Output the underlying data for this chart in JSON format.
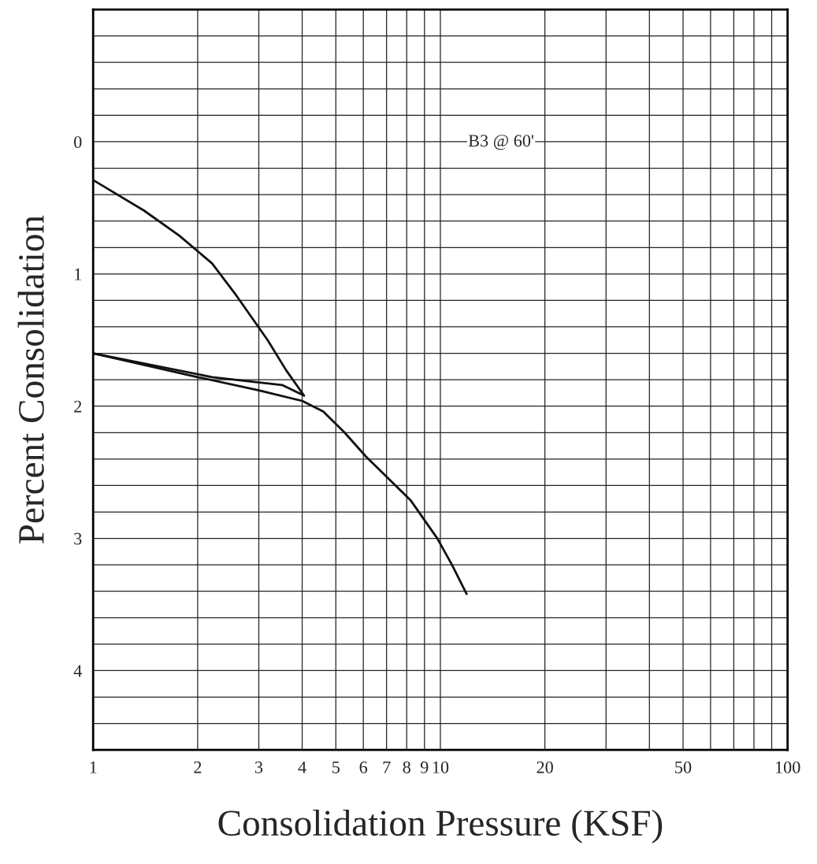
{
  "chart_data": {
    "type": "line",
    "xlabel": "Consolidation Pressure (KSF)",
    "ylabel": "Percent Consolidation",
    "annotations": [
      "B3 @ 60'"
    ],
    "log": "x",
    "grid": true,
    "marker": "none",
    "line_style": "solid",
    "xlim": [
      1,
      100
    ],
    "ylim": [
      4.6,
      -1
    ],
    "xticks": [
      1,
      2,
      3,
      4,
      5,
      6,
      7,
      8,
      9,
      10,
      20,
      {
        "value": 30,
        "label": null
      },
      {
        "value": 40,
        "label": null
      },
      50,
      {
        "value": 60,
        "label": null
      },
      {
        "value": 70,
        "label": null
      },
      {
        "value": 80,
        "label": null
      },
      {
        "value": 90,
        "label": null
      },
      100
    ],
    "yticks": [
      {
        "value": -0.8,
        "label": null
      },
      {
        "value": -0.6,
        "label": null
      },
      {
        "value": -0.4,
        "label": null
      },
      {
        "value": -0.2,
        "label": null
      },
      0,
      {
        "value": 0.2,
        "label": null
      },
      {
        "value": 0.4,
        "label": null
      },
      {
        "value": 0.6,
        "label": null
      },
      {
        "value": 0.8,
        "label": null
      },
      1,
      {
        "value": 1.2,
        "label": null
      },
      {
        "value": 1.4,
        "label": null
      },
      {
        "value": 1.6,
        "label": null
      },
      {
        "value": 1.8,
        "label": null
      },
      2,
      {
        "value": 2.2,
        "label": null
      },
      {
        "value": 2.4,
        "label": null
      },
      {
        "value": 2.6,
        "label": null
      },
      {
        "value": 2.8,
        "label": null
      },
      3,
      {
        "value": 3.2,
        "label": null
      },
      {
        "value": 3.4,
        "label": null
      },
      {
        "value": 3.6,
        "label": null
      },
      {
        "value": 3.8,
        "label": null
      },
      4,
      {
        "value": 4.2,
        "label": null
      },
      {
        "value": 4.4,
        "label": null
      }
    ],
    "series": [
      {
        "color": "#111111",
        "x": [
          1,
          1.4,
          1.77,
          2.2,
          2.58,
          3.18,
          3.6,
          4.05,
          3.5,
          2.2,
          1
        ],
        "values": [
          0.29,
          0.52,
          0.71,
          0.92,
          1.16,
          1.5,
          1.73,
          1.92,
          1.84,
          1.78,
          1.6
        ]
      },
      {
        "color": "#111111",
        "x": [
          1,
          2,
          3,
          4,
          4.6,
          5.3,
          6.1,
          7.1,
          8.2,
          9.8,
          10.8,
          11.9
        ],
        "values": [
          1.6,
          1.78,
          1.88,
          1.96,
          2.04,
          2.2,
          2.38,
          2.55,
          2.71,
          3.0,
          3.2,
          3.42
        ]
      }
    ]
  }
}
